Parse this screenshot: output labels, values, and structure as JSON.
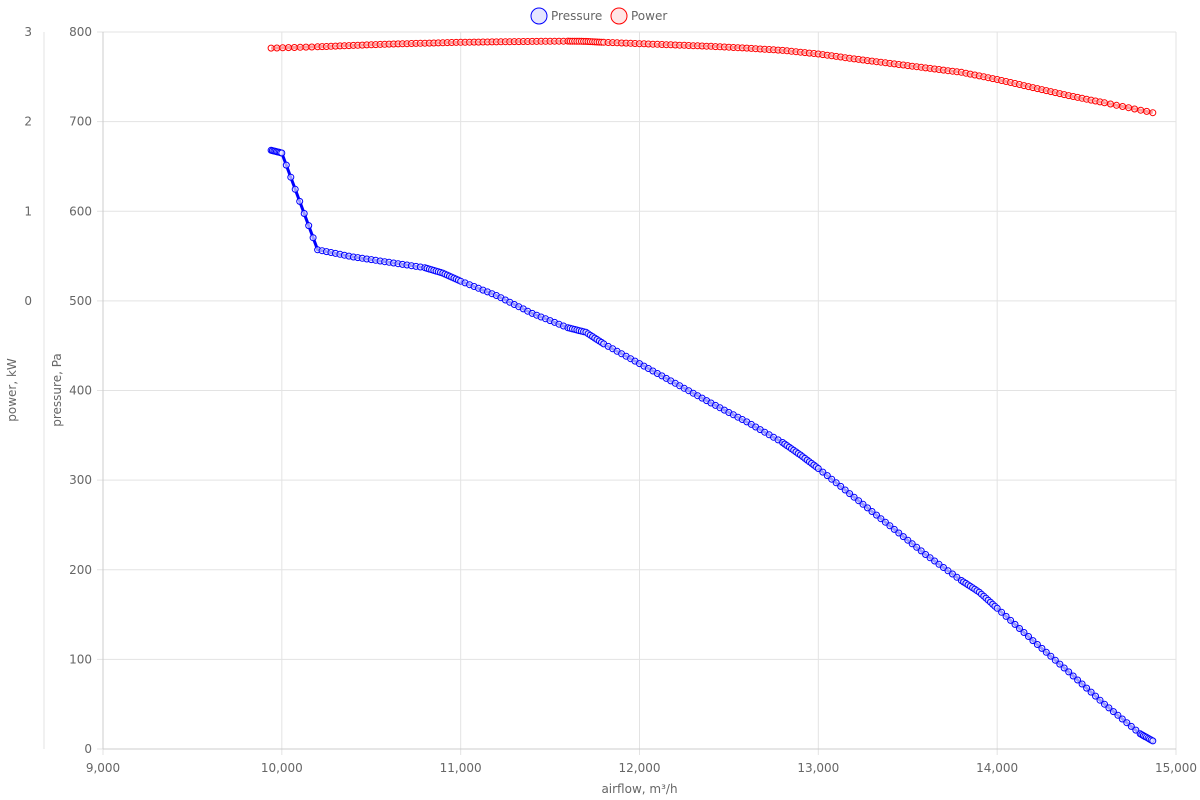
{
  "chart_data": {
    "type": "line",
    "legend_position": "top-center",
    "grid": true,
    "x_axis": {
      "label": "airflow, m³/h",
      "range": [
        9000,
        15000
      ],
      "ticks": [
        "9,000",
        "10,000",
        "11,000",
        "12,000",
        "13,000",
        "14,000",
        "15,000"
      ]
    },
    "y_axis_pressure": {
      "label": "pressure, Pa",
      "range": [
        0,
        800
      ],
      "ticks": [
        "0",
        "100",
        "200",
        "300",
        "400",
        "500",
        "600",
        "700",
        "800"
      ]
    },
    "y_axis_power": {
      "label": "power, kW",
      "range": [
        -5,
        3
      ],
      "ticks": [
        "0",
        "1",
        "2",
        "3"
      ]
    },
    "series": [
      {
        "name": "Pressure",
        "axis": "pressure",
        "color": "#0000ff",
        "x": [
          9940,
          10000,
          10200,
          10400,
          10600,
          10800,
          10900,
          11000,
          11200,
          11400,
          11600,
          11700,
          11800,
          12000,
          12200,
          12400,
          12600,
          12800,
          12900,
          13000,
          13200,
          13400,
          13600,
          13800,
          13900,
          14000,
          14200,
          14400,
          14600,
          14800,
          14870
        ],
        "y": [
          668,
          665,
          557,
          549,
          543,
          537,
          531,
          522,
          506,
          486,
          470,
          465,
          452,
          430,
          408,
          386,
          365,
          342,
          328,
          313,
          281,
          249,
          217,
          188,
          175,
          157,
          121,
          86,
          50,
          17,
          9
        ]
      },
      {
        "name": "Power",
        "axis": "power",
        "color": "#ff0000",
        "x": [
          9940,
          10200,
          10400,
          10600,
          10800,
          11000,
          11200,
          11400,
          11600,
          11700,
          11800,
          12000,
          12200,
          12400,
          12600,
          12800,
          13000,
          13200,
          13400,
          13600,
          13800,
          14000,
          14200,
          14400,
          14600,
          14870
        ],
        "y": [
          2.82,
          2.835,
          2.85,
          2.865,
          2.875,
          2.885,
          2.89,
          2.895,
          2.898,
          2.895,
          2.885,
          2.87,
          2.855,
          2.84,
          2.82,
          2.795,
          2.755,
          2.7,
          2.65,
          2.6,
          2.55,
          2.47,
          2.38,
          2.29,
          2.21,
          2.1
        ]
      }
    ]
  }
}
